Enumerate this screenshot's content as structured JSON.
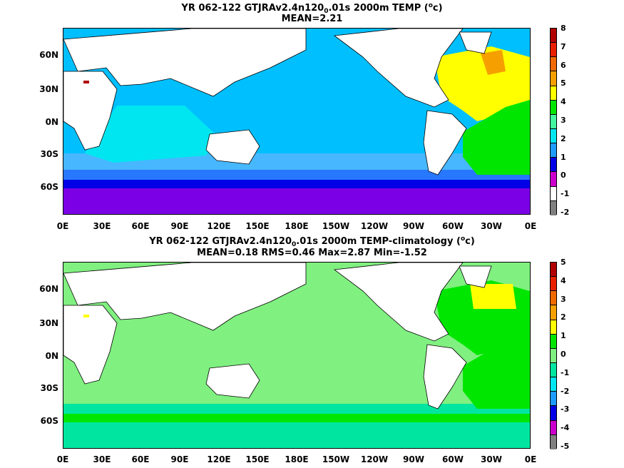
{
  "panels": [
    {
      "title_line1": {
        "prefix": "YR 062-122 GTJRAv2.4n120",
        "subscript": "0",
        "middle": ".01s 2000m TEMP (",
        "superscript": "o",
        "suffix": "c)"
      },
      "title_line2": "MEAN=2.21",
      "colorbar": {
        "labels": [
          "8",
          "7",
          "6",
          "5",
          "4",
          "3",
          "2",
          "1",
          "0",
          "-1",
          "-2"
        ],
        "colors": [
          "#b00000",
          "#e82000",
          "#f06a00",
          "#f5a000",
          "#ffff00",
          "#00e600",
          "#44f5a0",
          "#00e6f0",
          "#1e9bff",
          "#0000e6",
          "#cc00cc",
          "#ffffff",
          "#808080"
        ]
      },
      "regions": {
        "ocean_base": "#00bfff",
        "south_band_1": "#47b7ff",
        "south_band_2": "#2878ff",
        "south_band_3": "#0000e6",
        "antarctic": "#7b00e6",
        "indian_ocean": "#00e6f0",
        "atlantic_north": "#ffff00",
        "atlantic_south": "#00e600",
        "labrador": "#f5a000",
        "mediterranean": "#b00000",
        "land": "#ffffff"
      }
    },
    {
      "title_line1": {
        "prefix": "YR 062-122 GTJRAv2.4n120",
        "subscript": "0",
        "middle": ".01s 2000m TEMP-climatology (",
        "superscript": "o",
        "suffix": "c)"
      },
      "title_line2": "MEAN=0.18   RMS=0.46   Max=2.87   Min=-1.52",
      "colorbar": {
        "labels": [
          "5",
          "4",
          "3",
          "2",
          "1",
          "0",
          "-1",
          "-2",
          "-3",
          "-4",
          "-5"
        ],
        "colors": [
          "#b00000",
          "#e82000",
          "#f06a00",
          "#f5a000",
          "#ffff00",
          "#00e600",
          "#80f080",
          "#00e6a0",
          "#00e6f0",
          "#1e9bff",
          "#0000e6",
          "#cc00cc",
          "#808080"
        ]
      },
      "regions": {
        "ocean_base": "#80f080",
        "south_band_1": "#80f080",
        "south_band_2": "#00e6a0",
        "south_band_3": "#00e600",
        "antarctic": "#00e6a0",
        "indian_ocean": "#80f080",
        "atlantic_north": "#00e600",
        "atlantic_south": "#00e600",
        "labrador": "#ffff00",
        "mediterranean": "#ffff00",
        "land": "#ffffff"
      }
    }
  ],
  "axes": {
    "x_ticks": [
      "0E",
      "30E",
      "60E",
      "90E",
      "120E",
      "150E",
      "180E",
      "150W",
      "120W",
      "90W",
      "60W",
      "30W",
      "0E"
    ],
    "y_ticks": [
      "60N",
      "30N",
      "0N",
      "30S",
      "60S"
    ]
  }
}
